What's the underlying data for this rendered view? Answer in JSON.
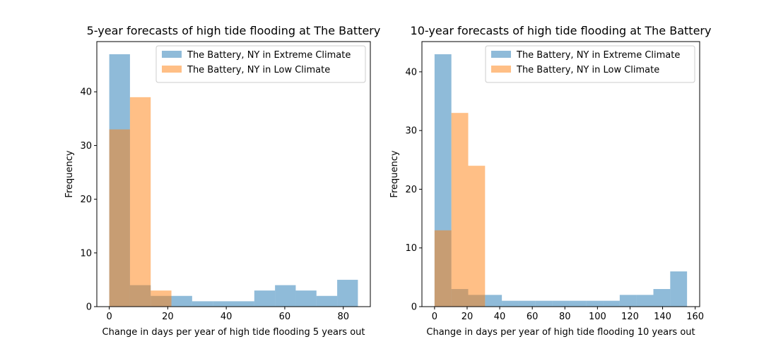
{
  "chart_data": [
    {
      "type": "histogram",
      "title": "5-year forecasts of high tide flooding at The Battery",
      "xlabel": "Change in days per year of high tide flooding 5 years out",
      "ylabel": "Frequency",
      "xlim": [
        -4.25,
        89.25
      ],
      "ylim": [
        0,
        49.35
      ],
      "xticks": [
        0,
        20,
        40,
        60,
        80
      ],
      "yticks": [
        0,
        10,
        20,
        30,
        40
      ],
      "legend_position": "top-right",
      "series": [
        {
          "name": "The Battery, NY in Extreme Climate",
          "color": "#1f77b4",
          "alpha": 0.5,
          "bin_edges": [
            0,
            7.083,
            14.167,
            21.25,
            28.333,
            35.417,
            42.5,
            49.583,
            56.667,
            63.75,
            70.833,
            77.917,
            85
          ],
          "counts": [
            47,
            4,
            2,
            2,
            1,
            1,
            1,
            3,
            4,
            3,
            2,
            5
          ]
        },
        {
          "name": "The Battery, NY in Low Climate",
          "color": "#ff7f0e",
          "alpha": 0.5,
          "bin_edges": [
            0,
            7.083,
            14.167,
            21.25
          ],
          "counts": [
            33,
            39,
            3
          ]
        }
      ]
    },
    {
      "type": "histogram",
      "title": "10-year forecasts of high tide flooding at The Battery",
      "xlabel": "Change in days per year of high tide flooding 10 years out",
      "ylabel": "Frequency",
      "xlim": [
        -7.75,
        162.75
      ],
      "ylim": [
        0,
        45.15
      ],
      "xticks": [
        0,
        20,
        40,
        60,
        80,
        100,
        120,
        140,
        160
      ],
      "yticks": [
        0,
        10,
        20,
        30,
        40
      ],
      "legend_position": "top-right",
      "series": [
        {
          "name": "The Battery, NY in Extreme Climate",
          "color": "#1f77b4",
          "alpha": 0.5,
          "bin_edges": [
            0,
            10.333,
            20.667,
            31,
            41.333,
            51.667,
            62,
            72.333,
            82.667,
            93,
            103.333,
            113.667,
            124,
            134.333,
            144.667,
            155
          ],
          "counts": [
            43,
            3,
            2,
            2,
            1,
            1,
            1,
            1,
            1,
            1,
            1,
            2,
            2,
            3,
            6
          ]
        },
        {
          "name": "The Battery, NY in Low Climate",
          "color": "#ff7f0e",
          "alpha": 0.5,
          "bin_edges": [
            0,
            10.333,
            20.667,
            31
          ],
          "counts": [
            13,
            33,
            24
          ]
        }
      ]
    }
  ]
}
